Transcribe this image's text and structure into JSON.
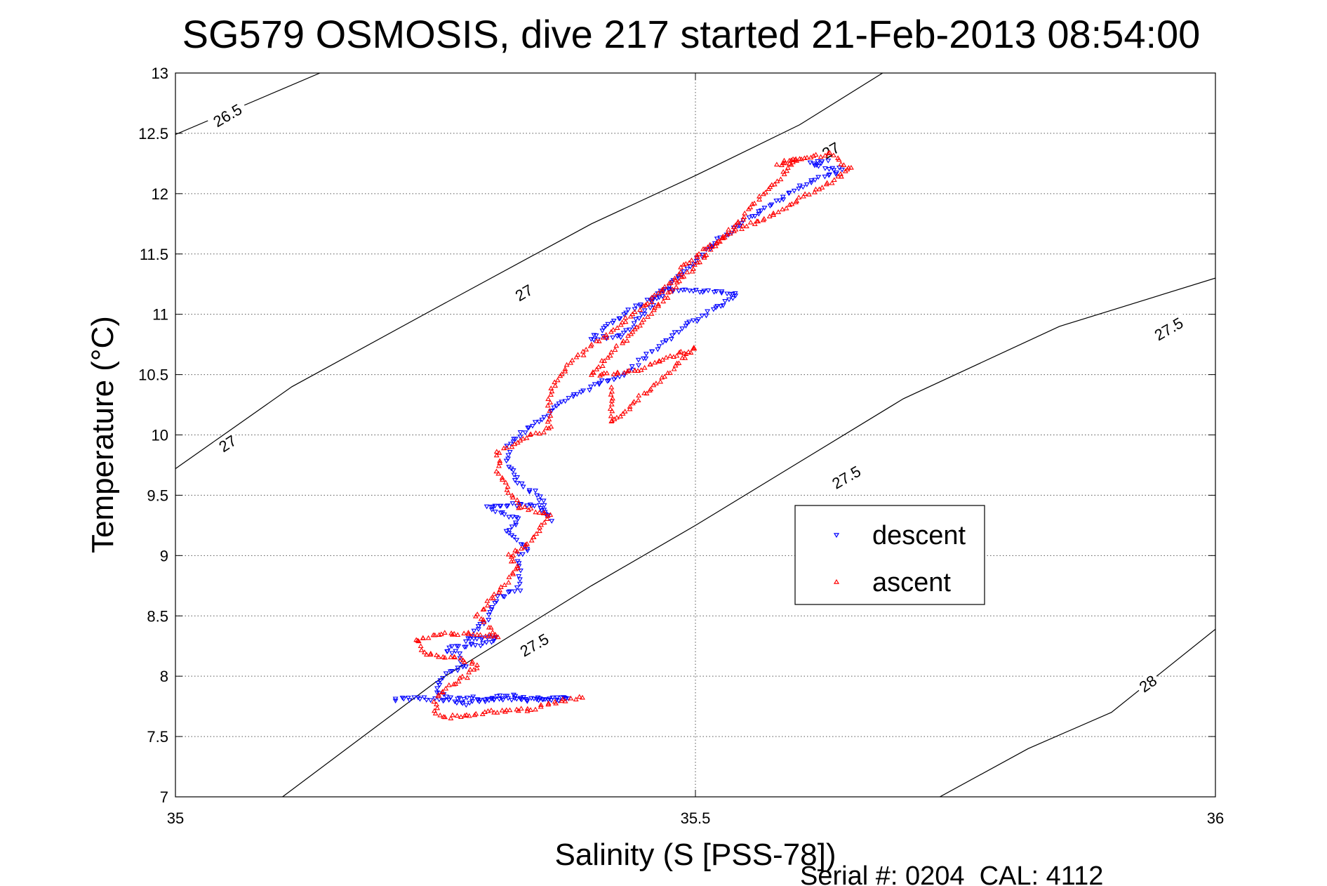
{
  "chart_data": {
    "type": "scatter",
    "title": "SG579 OSMOSIS, dive 217 started 21-Feb-2013 08:54:00",
    "xlabel": "Salinity (S [PSS-78])",
    "ylabel": "Temperature (°C)",
    "xlim": [
      35,
      36
    ],
    "ylim": [
      7,
      13
    ],
    "xticks": [
      35,
      35.5,
      36
    ],
    "yticks": [
      7,
      7.5,
      8,
      8.5,
      9,
      9.5,
      10,
      10.5,
      11,
      11.5,
      12,
      12.5,
      13
    ],
    "grid": true,
    "legend_position": "right-middle",
    "footer": "Serial #: 0204  CAL: 4112",
    "contours": [
      {
        "label": "26.5",
        "points": [
          [
            35.0,
            12.49
          ],
          [
            35.139,
            13.0
          ]
        ]
      },
      {
        "label": "27",
        "points": [
          [
            35.0,
            9.72
          ],
          [
            35.112,
            10.4
          ],
          [
            35.25,
            11.05
          ],
          [
            35.4,
            11.75
          ],
          [
            35.5,
            12.15
          ],
          [
            35.6,
            12.57
          ],
          [
            35.68,
            13.0
          ]
        ]
      },
      {
        "label": "27.5",
        "points": [
          [
            35.103,
            7.0
          ],
          [
            35.25,
            7.95
          ],
          [
            35.4,
            8.75
          ],
          [
            35.5,
            9.25
          ],
          [
            35.7,
            10.3
          ],
          [
            35.85,
            10.9
          ],
          [
            36.0,
            11.3
          ]
        ]
      },
      {
        "label": "28",
        "points": [
          [
            35.735,
            7.0
          ],
          [
            35.82,
            7.4
          ],
          [
            35.9,
            7.7
          ],
          [
            36.0,
            8.39
          ]
        ]
      }
    ],
    "contour_labels": [
      {
        "text": "26.5",
        "x": 35.05,
        "y": 12.65,
        "angle": -30
      },
      {
        "text": "27",
        "x": 35.05,
        "y": 9.93,
        "angle": -33
      },
      {
        "text": "27",
        "x": 35.335,
        "y": 11.18,
        "angle": -30
      },
      {
        "text": "27",
        "x": 35.63,
        "y": 12.36,
        "angle": -30
      },
      {
        "text": "27.5",
        "x": 35.345,
        "y": 8.26,
        "angle": -30
      },
      {
        "text": "27.5",
        "x": 35.645,
        "y": 9.65,
        "angle": -30
      },
      {
        "text": "27.5",
        "x": 35.955,
        "y": 10.88,
        "angle": -30
      },
      {
        "text": "28",
        "x": 35.935,
        "y": 7.94,
        "angle": -35
      }
    ],
    "series": [
      {
        "name": "descent",
        "color": "#0000ff",
        "marker": "triangle-down",
        "path": [
          [
            35.21,
            7.81
          ],
          [
            35.24,
            7.82
          ],
          [
            35.28,
            7.77
          ],
          [
            35.32,
            7.85
          ],
          [
            35.34,
            7.8
          ],
          [
            35.35,
            7.82
          ],
          [
            35.38,
            7.81
          ],
          [
            35.26,
            7.82
          ],
          [
            35.25,
            7.9
          ],
          [
            35.26,
            8.02
          ],
          [
            35.28,
            8.08
          ],
          [
            35.27,
            8.2
          ],
          [
            35.26,
            8.22
          ],
          [
            35.27,
            8.25
          ],
          [
            35.3,
            8.27
          ],
          [
            35.31,
            8.33
          ],
          [
            35.28,
            8.3
          ],
          [
            35.3,
            8.47
          ],
          [
            35.31,
            8.65
          ],
          [
            35.33,
            8.72
          ],
          [
            35.33,
            8.9
          ],
          [
            35.33,
            9.0
          ],
          [
            35.34,
            9.05
          ],
          [
            35.32,
            9.2
          ],
          [
            35.33,
            9.3
          ],
          [
            35.3,
            9.4
          ],
          [
            35.32,
            9.42
          ],
          [
            35.35,
            9.42
          ],
          [
            35.36,
            9.3
          ],
          [
            35.35,
            9.5
          ],
          [
            35.33,
            9.6
          ],
          [
            35.32,
            9.75
          ],
          [
            35.32,
            9.9
          ],
          [
            35.33,
            10.0
          ],
          [
            35.37,
            10.25
          ],
          [
            35.4,
            10.4
          ],
          [
            35.43,
            10.5
          ],
          [
            35.46,
            10.7
          ],
          [
            35.49,
            10.9
          ],
          [
            35.51,
            11.0
          ],
          [
            35.53,
            11.1
          ],
          [
            35.54,
            11.18
          ],
          [
            35.47,
            11.2
          ],
          [
            35.44,
            11.05
          ],
          [
            35.42,
            10.93
          ],
          [
            35.4,
            10.8
          ],
          [
            35.43,
            10.82
          ],
          [
            35.46,
            11.1
          ],
          [
            35.48,
            11.28
          ],
          [
            35.5,
            11.45
          ],
          [
            35.52,
            11.6
          ],
          [
            35.55,
            11.8
          ],
          [
            35.58,
            11.95
          ],
          [
            35.61,
            12.1
          ],
          [
            35.63,
            12.15
          ],
          [
            35.64,
            12.2
          ],
          [
            35.62,
            12.22
          ],
          [
            35.61,
            12.25
          ],
          [
            35.63,
            12.27
          ]
        ]
      },
      {
        "name": "ascent",
        "color": "#ff0000",
        "marker": "triangle-up",
        "path": [
          [
            35.39,
            7.83
          ],
          [
            35.36,
            7.77
          ],
          [
            35.34,
            7.72
          ],
          [
            35.32,
            7.72
          ],
          [
            35.3,
            7.7
          ],
          [
            35.28,
            7.68
          ],
          [
            35.26,
            7.66
          ],
          [
            35.25,
            7.68
          ],
          [
            35.25,
            7.8
          ],
          [
            35.26,
            7.9
          ],
          [
            35.28,
            8.0
          ],
          [
            35.29,
            8.1
          ],
          [
            35.27,
            8.15
          ],
          [
            35.24,
            8.18
          ],
          [
            35.23,
            8.3
          ],
          [
            35.26,
            8.35
          ],
          [
            35.29,
            8.35
          ],
          [
            35.31,
            8.33
          ],
          [
            35.29,
            8.5
          ],
          [
            35.31,
            8.7
          ],
          [
            35.33,
            8.9
          ],
          [
            35.32,
            9.0
          ],
          [
            35.34,
            9.1
          ],
          [
            35.35,
            9.2
          ],
          [
            35.36,
            9.35
          ],
          [
            35.33,
            9.4
          ],
          [
            35.32,
            9.55
          ],
          [
            35.31,
            9.7
          ],
          [
            35.31,
            9.85
          ],
          [
            35.34,
            10.0
          ],
          [
            35.36,
            10.05
          ],
          [
            35.36,
            10.35
          ],
          [
            35.38,
            10.6
          ],
          [
            35.41,
            10.8
          ],
          [
            35.44,
            11.0
          ],
          [
            35.47,
            11.2
          ],
          [
            35.49,
            11.4
          ],
          [
            35.51,
            11.55
          ],
          [
            35.54,
            11.7
          ],
          [
            35.58,
            11.85
          ],
          [
            35.61,
            12.0
          ],
          [
            35.63,
            12.1
          ],
          [
            35.65,
            12.2
          ],
          [
            35.63,
            12.33
          ],
          [
            35.6,
            12.28
          ],
          [
            35.58,
            12.24
          ],
          [
            35.6,
            12.3
          ],
          [
            35.4,
            10.5
          ],
          [
            35.44,
            10.52
          ],
          [
            35.47,
            10.62
          ],
          [
            35.5,
            10.72
          ],
          [
            35.42,
            10.1
          ],
          [
            35.42,
            10.42
          ]
        ]
      }
    ]
  }
}
